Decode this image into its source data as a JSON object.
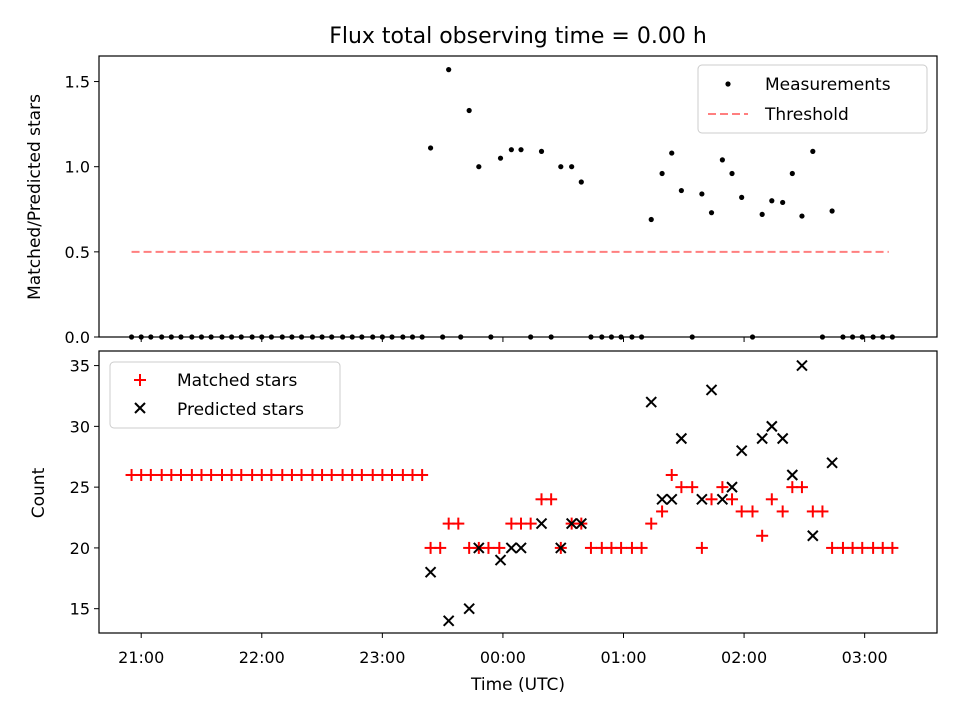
{
  "figure": {
    "title": "Flux total observing time = 0.00 h",
    "xlabel": "Time (UTC)",
    "xticks": [
      {
        "t": -3.0,
        "label": "21:00"
      },
      {
        "t": -2.0,
        "label": "22:00"
      },
      {
        "t": -1.0,
        "label": "23:00"
      },
      {
        "t": 0.0,
        "label": "00:00"
      },
      {
        "t": 1.0,
        "label": "01:00"
      },
      {
        "t": 2.0,
        "label": "02:00"
      },
      {
        "t": 3.0,
        "label": "03:00"
      }
    ],
    "xlim": [
      -3.35,
      3.6
    ],
    "time_unit_note": "t in hours relative to 00:00 UTC"
  },
  "chart_data": [
    {
      "type": "scatter",
      "ylabel": "Matched/Predicted stars",
      "ylim": [
        0,
        1.65
      ],
      "yticks": [
        "0.0",
        "0.5",
        "1.0",
        "1.5"
      ],
      "ytick_values": [
        0,
        0.5,
        1.0,
        1.5
      ],
      "legend": {
        "position": "top-right",
        "entries": [
          "Measurements",
          "Threshold"
        ]
      },
      "series": [
        {
          "name": "Measurements",
          "color": "#000000",
          "marker": "dot",
          "points": [
            [
              -3.08,
              0
            ],
            [
              -3.0,
              0
            ],
            [
              -2.92,
              0
            ],
            [
              -2.83,
              0
            ],
            [
              -2.75,
              0
            ],
            [
              -2.67,
              0
            ],
            [
              -2.58,
              0
            ],
            [
              -2.5,
              0
            ],
            [
              -2.42,
              0
            ],
            [
              -2.33,
              0
            ],
            [
              -2.25,
              0
            ],
            [
              -2.17,
              0
            ],
            [
              -2.08,
              0
            ],
            [
              -2.0,
              0
            ],
            [
              -1.92,
              0
            ],
            [
              -1.83,
              0
            ],
            [
              -1.75,
              0
            ],
            [
              -1.67,
              0
            ],
            [
              -1.58,
              0
            ],
            [
              -1.5,
              0
            ],
            [
              -1.42,
              0
            ],
            [
              -1.33,
              0
            ],
            [
              -1.25,
              0
            ],
            [
              -1.17,
              0
            ],
            [
              -1.08,
              0
            ],
            [
              -1.0,
              0
            ],
            [
              -0.92,
              0
            ],
            [
              -0.83,
              0
            ],
            [
              -0.75,
              0
            ],
            [
              -0.67,
              0
            ],
            [
              -0.6,
              1.11
            ],
            [
              -0.5,
              0
            ],
            [
              -0.45,
              1.57
            ],
            [
              -0.35,
              0
            ],
            [
              -0.28,
              1.33
            ],
            [
              -0.2,
              1.0
            ],
            [
              -0.1,
              0
            ],
            [
              -0.02,
              1.05
            ],
            [
              0.07,
              1.1
            ],
            [
              0.15,
              1.1
            ],
            [
              0.23,
              0
            ],
            [
              0.32,
              1.09
            ],
            [
              0.4,
              0
            ],
            [
              0.48,
              1.0
            ],
            [
              0.57,
              1.0
            ],
            [
              0.65,
              0.91
            ],
            [
              0.73,
              0
            ],
            [
              0.82,
              0
            ],
            [
              0.9,
              0
            ],
            [
              0.98,
              0
            ],
            [
              1.07,
              0
            ],
            [
              1.15,
              0
            ],
            [
              1.23,
              0.69
            ],
            [
              1.32,
              0.96
            ],
            [
              1.4,
              1.08
            ],
            [
              1.48,
              0.86
            ],
            [
              1.57,
              0
            ],
            [
              1.65,
              0.84
            ],
            [
              1.73,
              0.73
            ],
            [
              1.82,
              1.04
            ],
            [
              1.9,
              0.96
            ],
            [
              1.98,
              0.82
            ],
            [
              2.07,
              0
            ],
            [
              2.15,
              0.72
            ],
            [
              2.23,
              0.8
            ],
            [
              2.32,
              0.79
            ],
            [
              2.4,
              0.96
            ],
            [
              2.48,
              0.71
            ],
            [
              2.57,
              1.09
            ],
            [
              2.65,
              0
            ],
            [
              2.73,
              0.74
            ],
            [
              2.82,
              0
            ],
            [
              2.9,
              0
            ],
            [
              2.98,
              0
            ],
            [
              3.07,
              0
            ],
            [
              3.15,
              0
            ],
            [
              3.23,
              0
            ]
          ]
        },
        {
          "name": "Threshold",
          "color": "#ff7f7f",
          "style": "dashed",
          "x": [
            -3.08,
            3.2
          ],
          "y": [
            0.5,
            0.5
          ]
        }
      ]
    },
    {
      "type": "scatter",
      "ylabel": "Count",
      "ylim": [
        13,
        36.2
      ],
      "yticks": [
        "15",
        "20",
        "25",
        "30",
        "35"
      ],
      "ytick_values": [
        15,
        20,
        25,
        30,
        35
      ],
      "legend": {
        "position": "top-left",
        "entries": [
          "Matched stars",
          "Predicted stars"
        ]
      },
      "series": [
        {
          "name": "Matched stars",
          "color": "#ff0000",
          "marker": "plus",
          "points": [
            [
              -3.08,
              26
            ],
            [
              -3.0,
              26
            ],
            [
              -2.92,
              26
            ],
            [
              -2.83,
              26
            ],
            [
              -2.75,
              26
            ],
            [
              -2.67,
              26
            ],
            [
              -2.58,
              26
            ],
            [
              -2.5,
              26
            ],
            [
              -2.42,
              26
            ],
            [
              -2.33,
              26
            ],
            [
              -2.25,
              26
            ],
            [
              -2.17,
              26
            ],
            [
              -2.08,
              26
            ],
            [
              -2.0,
              26
            ],
            [
              -1.92,
              26
            ],
            [
              -1.83,
              26
            ],
            [
              -1.75,
              26
            ],
            [
              -1.67,
              26
            ],
            [
              -1.58,
              26
            ],
            [
              -1.5,
              26
            ],
            [
              -1.42,
              26
            ],
            [
              -1.33,
              26
            ],
            [
              -1.25,
              26
            ],
            [
              -1.17,
              26
            ],
            [
              -1.08,
              26
            ],
            [
              -1.0,
              26
            ],
            [
              -0.92,
              26
            ],
            [
              -0.83,
              26
            ],
            [
              -0.75,
              26
            ],
            [
              -0.67,
              26
            ],
            [
              -0.6,
              20
            ],
            [
              -0.52,
              20
            ],
            [
              -0.45,
              22
            ],
            [
              -0.37,
              22
            ],
            [
              -0.28,
              20
            ],
            [
              -0.2,
              20
            ],
            [
              -0.12,
              20
            ],
            [
              -0.03,
              20
            ],
            [
              0.07,
              22
            ],
            [
              0.15,
              22
            ],
            [
              0.23,
              22
            ],
            [
              0.32,
              24
            ],
            [
              0.4,
              24
            ],
            [
              0.48,
              20
            ],
            [
              0.57,
              22
            ],
            [
              0.65,
              22
            ],
            [
              0.73,
              20
            ],
            [
              0.82,
              20
            ],
            [
              0.9,
              20
            ],
            [
              0.98,
              20
            ],
            [
              1.07,
              20
            ],
            [
              1.15,
              20
            ],
            [
              1.23,
              22
            ],
            [
              1.32,
              23
            ],
            [
              1.4,
              26
            ],
            [
              1.48,
              25
            ],
            [
              1.57,
              25
            ],
            [
              1.65,
              20
            ],
            [
              1.73,
              24
            ],
            [
              1.82,
              25
            ],
            [
              1.9,
              24
            ],
            [
              1.98,
              23
            ],
            [
              2.07,
              23
            ],
            [
              2.15,
              21
            ],
            [
              2.23,
              24
            ],
            [
              2.32,
              23
            ],
            [
              2.4,
              25
            ],
            [
              2.48,
              25
            ],
            [
              2.57,
              23
            ],
            [
              2.65,
              23
            ],
            [
              2.73,
              20
            ],
            [
              2.82,
              20
            ],
            [
              2.9,
              20
            ],
            [
              2.98,
              20
            ],
            [
              3.07,
              20
            ],
            [
              3.15,
              20
            ],
            [
              3.23,
              20
            ]
          ]
        },
        {
          "name": "Predicted stars",
          "color": "#000000",
          "marker": "x",
          "points": [
            [
              -0.6,
              18
            ],
            [
              -0.45,
              14
            ],
            [
              -0.28,
              15
            ],
            [
              -0.2,
              20
            ],
            [
              -0.02,
              19
            ],
            [
              0.07,
              20
            ],
            [
              0.15,
              20
            ],
            [
              0.32,
              22
            ],
            [
              0.48,
              20
            ],
            [
              0.57,
              22
            ],
            [
              0.65,
              22
            ],
            [
              1.23,
              32
            ],
            [
              1.32,
              24
            ],
            [
              1.4,
              24
            ],
            [
              1.48,
              29
            ],
            [
              1.65,
              24
            ],
            [
              1.73,
              33
            ],
            [
              1.82,
              24
            ],
            [
              1.9,
              25
            ],
            [
              1.98,
              28
            ],
            [
              2.15,
              29
            ],
            [
              2.23,
              30
            ],
            [
              2.32,
              29
            ],
            [
              2.4,
              26
            ],
            [
              2.48,
              35
            ],
            [
              2.57,
              21
            ],
            [
              2.73,
              27
            ]
          ]
        }
      ]
    }
  ]
}
